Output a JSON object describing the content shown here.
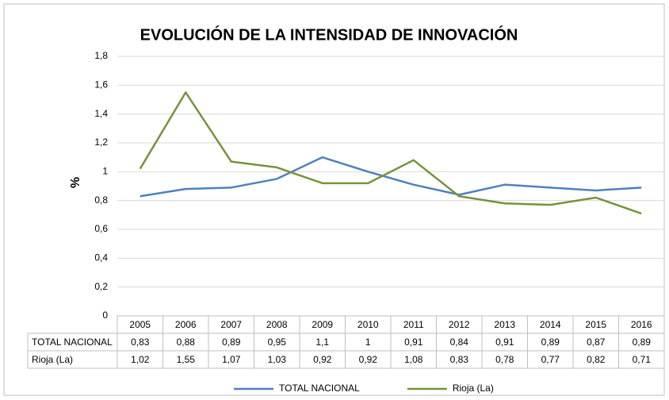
{
  "chart_data": {
    "type": "line",
    "title": "EVOLUCIÓN DE LA INTENSIDAD DE INNOVACIÓN",
    "y_label": "%",
    "categories": [
      "2005",
      "2006",
      "2007",
      "2008",
      "2009",
      "2010",
      "2011",
      "2012",
      "2013",
      "2014",
      "2015",
      "2016"
    ],
    "series": [
      {
        "name": "TOTAL NACIONAL",
        "color": "#4f81bd",
        "values": [
          0.83,
          0.88,
          0.89,
          0.95,
          1.1,
          1,
          0.91,
          0.84,
          0.91,
          0.89,
          0.87,
          0.89
        ],
        "value_labels": [
          "0,83",
          "0,88",
          "0,89",
          "0,95",
          "1,1",
          "1",
          "0,91",
          "0,84",
          "0,91",
          "0,89",
          "0,87",
          "0,89"
        ]
      },
      {
        "name": "Rioja (La)",
        "color": "#77933c",
        "values": [
          1.02,
          1.55,
          1.07,
          1.03,
          0.92,
          0.92,
          1.08,
          0.83,
          0.78,
          0.77,
          0.82,
          0.71
        ],
        "value_labels": [
          "1,02",
          "1,55",
          "1,07",
          "1,03",
          "0,92",
          "0,92",
          "1,08",
          "0,83",
          "0,78",
          "0,77",
          "0,82",
          "0,71"
        ]
      }
    ],
    "ylim": [
      0,
      1.8
    ],
    "yticks": [
      0,
      {
        "value": 0.2,
        "label": "0,2"
      },
      {
        "value": 0.4,
        "label": "0,4"
      },
      {
        "value": 0.6,
        "label": "0,6"
      },
      {
        "value": 0.8,
        "label": "0,8"
      },
      1,
      {
        "value": 1.2,
        "label": "1,2"
      },
      {
        "value": 1.4,
        "label": "1,4"
      },
      {
        "value": 1.6,
        "label": "1,6"
      },
      {
        "value": 1.8,
        "label": "1,8"
      }
    ],
    "grid": true,
    "legend": "bottom"
  }
}
